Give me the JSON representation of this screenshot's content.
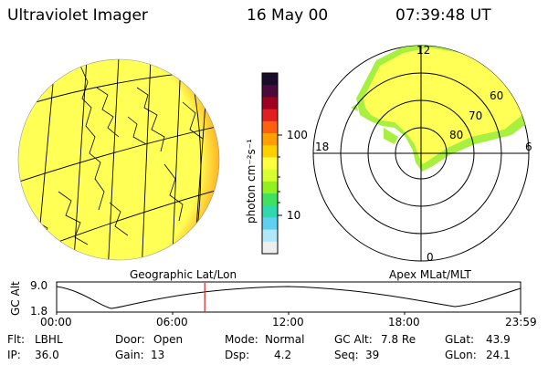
{
  "header": {
    "instrument": "Ultraviolet Imager",
    "date": "16 May 00",
    "time": "07:39:48 UT"
  },
  "colorbar": {
    "unit_label": "photon cm⁻²s⁻¹",
    "ticks": [
      "100",
      "10"
    ],
    "colors": [
      "#1b0a2a",
      "#4a0a3c",
      "#a00020",
      "#e02020",
      "#ff6010",
      "#ffa000",
      "#ffd000",
      "#ffff40",
      "#d8ff30",
      "#90f020",
      "#40e060",
      "#30d8b0",
      "#60d0f0",
      "#b0e8f8",
      "#eeeeee"
    ]
  },
  "earth_view": {
    "caption": "Geographic Lat/Lon",
    "fill_color": "#ffff55",
    "limb_color": "#e83020"
  },
  "polar_plot": {
    "caption": "Apex MLat/MLT",
    "mlt_labels": {
      "top": "12",
      "right": "6",
      "bottom": "0",
      "left": "18"
    },
    "lat_labels": [
      "60",
      "70",
      "80"
    ],
    "aurora_color": "#ffff55",
    "edge_color": "#a8f040"
  },
  "timeline": {
    "axis_label": "GC Alt",
    "y_ticks": [
      "9.0",
      "1.8"
    ],
    "x_ticks": [
      "00:00",
      "06:00",
      "12:00",
      "18:00",
      "23:59"
    ],
    "current_time": "07:39:48",
    "marker_color": "#e02020"
  },
  "status": {
    "flt_label": "Flt:",
    "flt_value": "LBHL",
    "ip_label": "IP:",
    "ip_value": "36.0",
    "door_label": "Door:",
    "door_value": "Open",
    "gain_label": "Gain:",
    "gain_value": "13",
    "mode_label": "Mode:",
    "mode_value": "Normal",
    "dsp_label": "Dsp:",
    "dsp_value": "4.2",
    "gcalt_label": "GC Alt:",
    "gcalt_value": "7.8 Re",
    "seq_label": "Seq:",
    "seq_value": "39",
    "glat_label": "GLat:",
    "glat_value": "43.9",
    "glon_label": "GLon:",
    "glon_value": "24.1"
  }
}
